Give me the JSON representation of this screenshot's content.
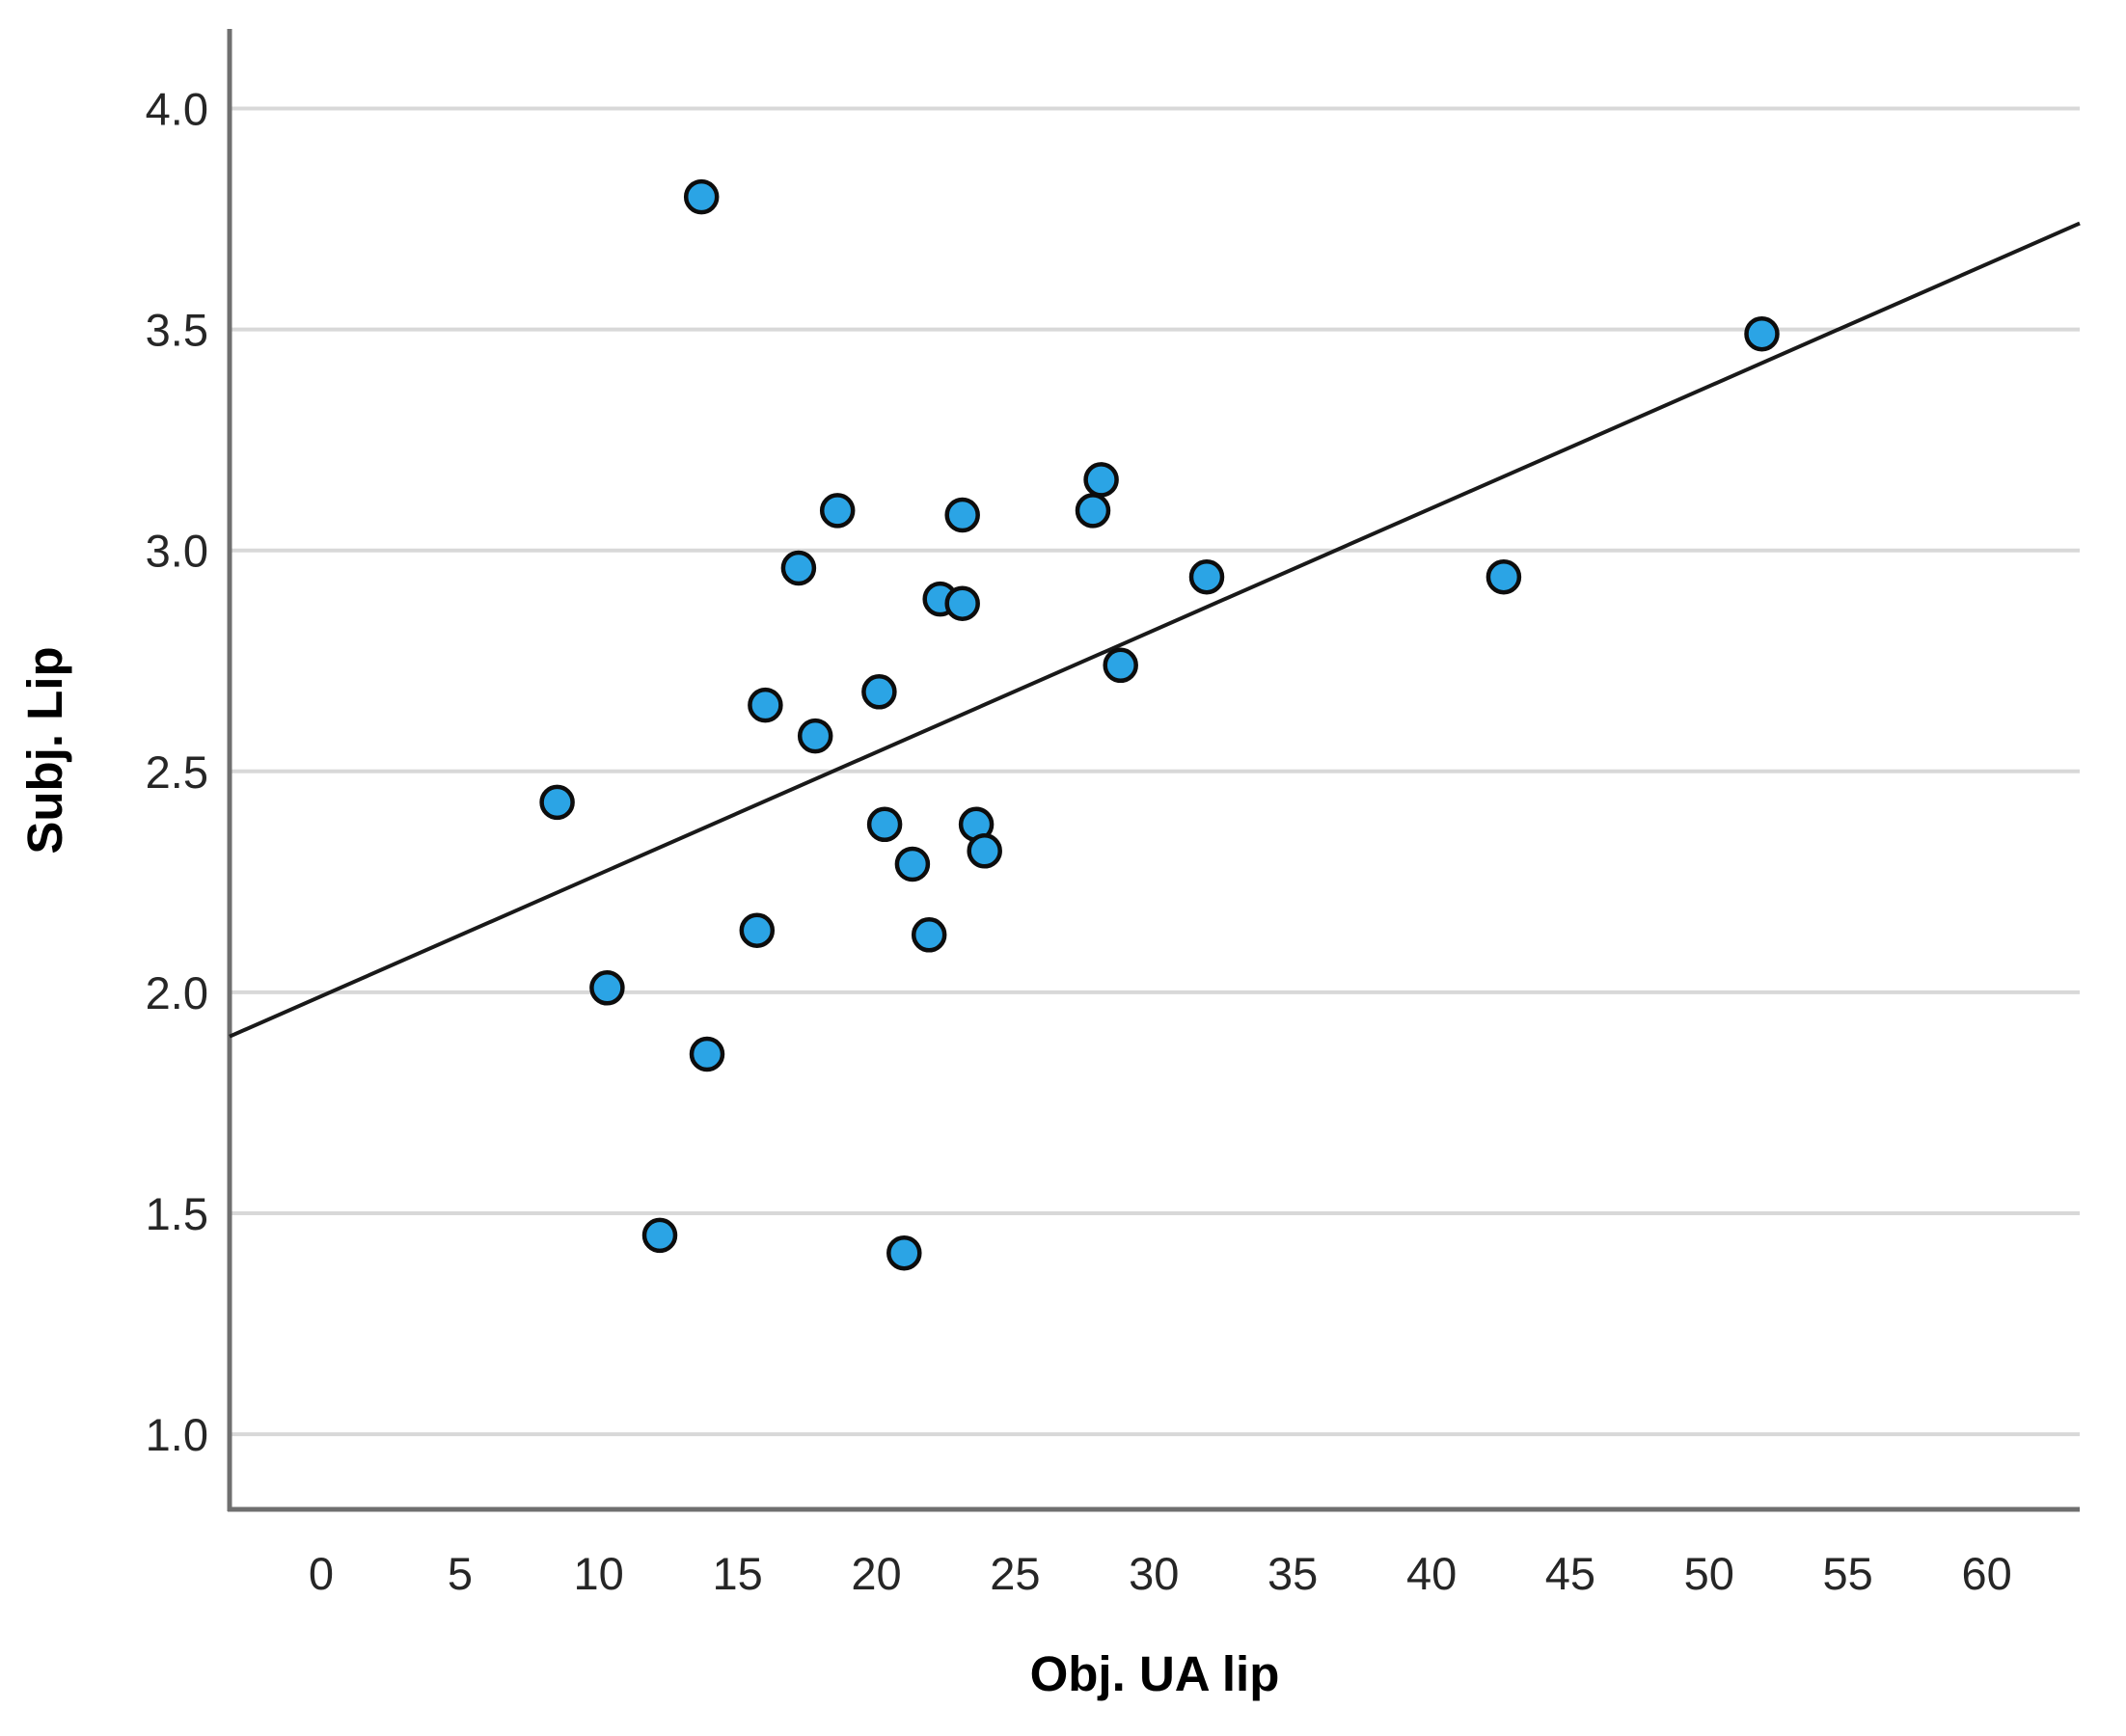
{
  "figure": {
    "background": "#ffffff"
  },
  "chart_data": {
    "type": "scatter",
    "title": "",
    "xlabel": "Obj. UA lip",
    "ylabel": "Subj. Lip",
    "x_tick_labels": [
      "0",
      "5",
      "10",
      "15",
      "20",
      "25",
      "30",
      "35",
      "40",
      "45",
      "50",
      "55",
      "60"
    ],
    "x_tick_values": [
      0,
      5,
      10,
      15,
      20,
      25,
      30,
      35,
      40,
      45,
      50,
      55,
      60
    ],
    "y_tick_labels": [
      "1.0",
      "1.5",
      "2.0",
      "2.5",
      "3.0",
      "3.5",
      "4.0"
    ],
    "y_tick_values": [
      1.0,
      1.5,
      2.0,
      2.5,
      3.0,
      3.5,
      4.0
    ],
    "xlim": [
      -3.3,
      63.35
    ],
    "ylim": [
      0.83,
      4.18
    ],
    "grid": "horizontal-only",
    "legend": "none",
    "points": [
      [
        13.7,
        3.8
      ],
      [
        51.9,
        3.49
      ],
      [
        28.1,
        3.16
      ],
      [
        18.6,
        3.09
      ],
      [
        27.8,
        3.09
      ],
      [
        23.1,
        3.08
      ],
      [
        17.2,
        2.96
      ],
      [
        31.9,
        2.94
      ],
      [
        42.6,
        2.94
      ],
      [
        22.3,
        2.89
      ],
      [
        23.1,
        2.88
      ],
      [
        28.8,
        2.74
      ],
      [
        20.1,
        2.68
      ],
      [
        16.0,
        2.65
      ],
      [
        17.8,
        2.58
      ],
      [
        8.5,
        2.43
      ],
      [
        20.3,
        2.38
      ],
      [
        23.6,
        2.38
      ],
      [
        23.9,
        2.32
      ],
      [
        21.3,
        2.29
      ],
      [
        15.7,
        2.14
      ],
      [
        21.9,
        2.13
      ],
      [
        10.3,
        2.01
      ],
      [
        13.9,
        1.86
      ],
      [
        12.2,
        1.45
      ],
      [
        21.0,
        1.41
      ]
    ],
    "fit_line": {
      "x1": -3.3,
      "y1": 1.9,
      "x2": 63.35,
      "y2": 3.74
    },
    "colors": {
      "point_fill": "#2BA4E5",
      "point_stroke": "#0d0d0d",
      "grid_line": "#d8d8d8",
      "axis_line": "#6f6f6f",
      "fit_line": "#191919",
      "tick_text": "#262626",
      "title_text": "#000000"
    }
  }
}
